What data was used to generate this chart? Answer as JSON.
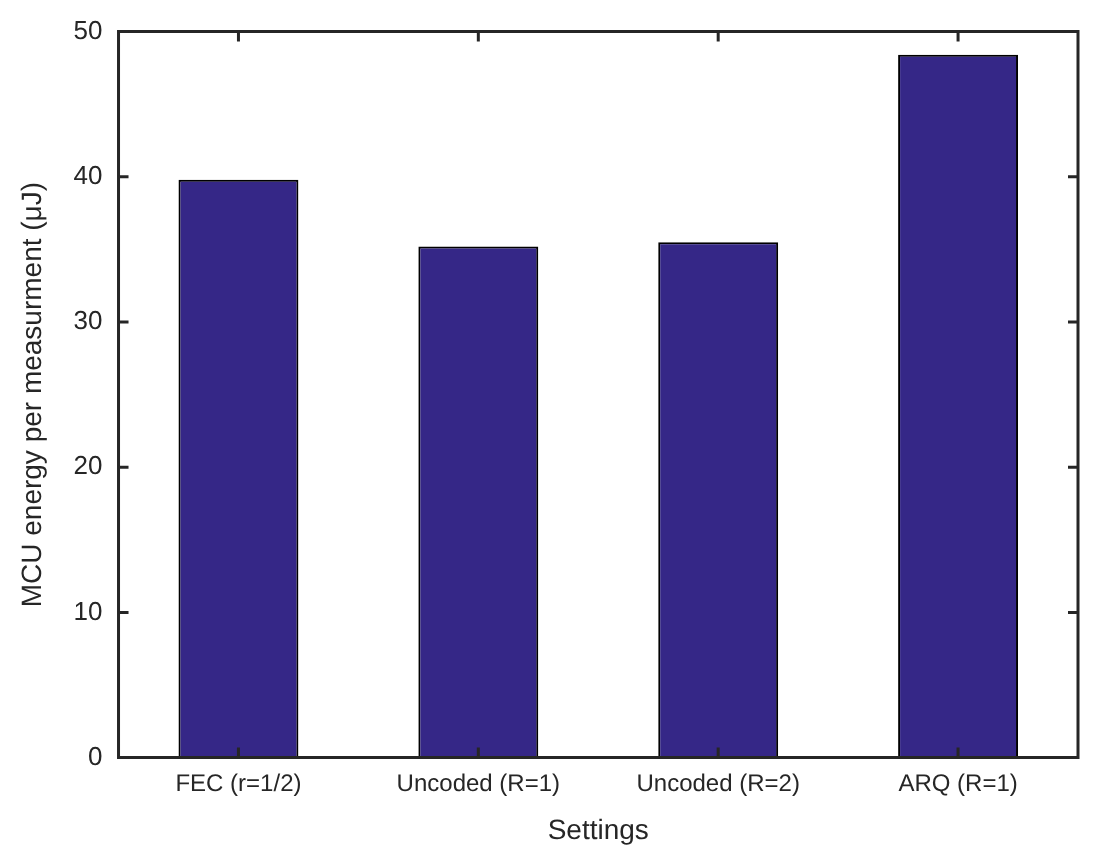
{
  "chart_data": {
    "type": "bar",
    "xlabel": "Settings",
    "ylabel": "MCU energy per measurment (μJ)",
    "categories": [
      "FEC (r=1/2)",
      "Uncoded (R=1)",
      "Uncoded (R=2)",
      "ARQ (R=1)"
    ],
    "values": [
      39.8,
      35.2,
      35.5,
      48.4
    ],
    "color": "#352787",
    "ylim": [
      0,
      50
    ],
    "yticks": [
      0,
      10,
      20,
      30,
      40,
      50
    ],
    "grid": false,
    "legend": false
  }
}
